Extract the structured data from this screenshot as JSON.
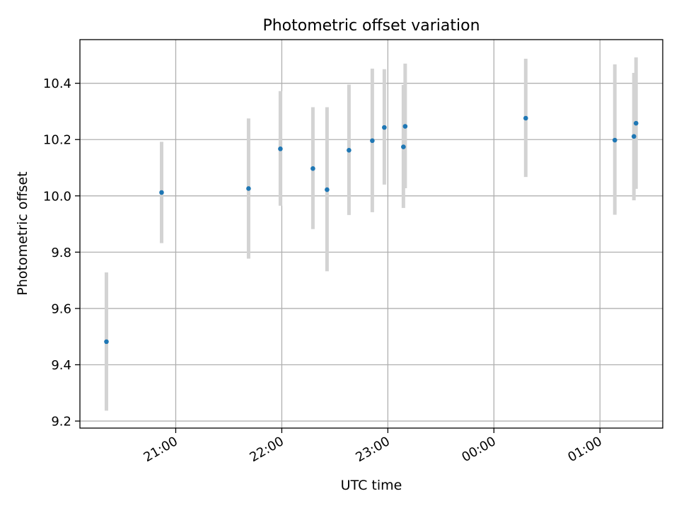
{
  "chart_data": {
    "type": "scatter",
    "title": "Photometric offset variation",
    "xlabel": "UTC time",
    "ylabel": "Photometric offset",
    "x_unit": "minutes_from_21:00",
    "x_ticks": [
      {
        "value": 0,
        "label": "21:00"
      },
      {
        "value": 60,
        "label": "22:00"
      },
      {
        "value": 120,
        "label": "23:00"
      },
      {
        "value": 180,
        "label": "00:00"
      },
      {
        "value": 240,
        "label": "01:00"
      }
    ],
    "y_ticks": [
      {
        "value": 9.2,
        "label": "9.2"
      },
      {
        "value": 9.4,
        "label": "9.4"
      },
      {
        "value": 9.6,
        "label": "9.6"
      },
      {
        "value": 9.8,
        "label": "9.8"
      },
      {
        "value": 10.0,
        "label": "10.0"
      },
      {
        "value": 10.2,
        "label": "10.2"
      },
      {
        "value": 10.4,
        "label": "10.4"
      }
    ],
    "xlim": [
      -54.2,
      275.5
    ],
    "ylim": [
      9.175,
      10.555
    ],
    "grid": true,
    "colors": {
      "point": "#1f77b4",
      "errorbar": "#d3d3d3",
      "grid": "#b0b0b0"
    },
    "points": [
      {
        "x": -39.2,
        "y": 9.482,
        "ylow": 9.237,
        "yhigh": 9.728
      },
      {
        "x": -8.0,
        "y": 10.012,
        "ylow": 9.832,
        "yhigh": 10.192
      },
      {
        "x": 41.2,
        "y": 10.026,
        "ylow": 9.777,
        "yhigh": 10.275
      },
      {
        "x": 59.2,
        "y": 10.167,
        "ylow": 9.965,
        "yhigh": 10.372
      },
      {
        "x": 77.6,
        "y": 10.097,
        "ylow": 9.882,
        "yhigh": 10.315
      },
      {
        "x": 85.6,
        "y": 10.022,
        "ylow": 9.732,
        "yhigh": 10.315
      },
      {
        "x": 98.0,
        "y": 10.162,
        "ylow": 9.932,
        "yhigh": 10.395
      },
      {
        "x": 118.0,
        "y": 10.243,
        "ylow": 10.04,
        "yhigh": 10.45
      },
      {
        "x": 111.2,
        "y": 10.196,
        "ylow": 9.942,
        "yhigh": 10.452
      },
      {
        "x": 128.8,
        "y": 10.174,
        "ylow": 9.957,
        "yhigh": 10.394
      },
      {
        "x": 129.8,
        "y": 10.247,
        "ylow": 10.027,
        "yhigh": 10.47
      },
      {
        "x": 198.0,
        "y": 10.276,
        "ylow": 10.067,
        "yhigh": 10.487
      },
      {
        "x": 248.4,
        "y": 10.198,
        "ylow": 9.933,
        "yhigh": 10.467
      },
      {
        "x": 259.2,
        "y": 10.211,
        "ylow": 9.984,
        "yhigh": 10.437
      },
      {
        "x": 260.4,
        "y": 10.258,
        "ylow": 10.025,
        "yhigh": 10.492
      }
    ]
  }
}
